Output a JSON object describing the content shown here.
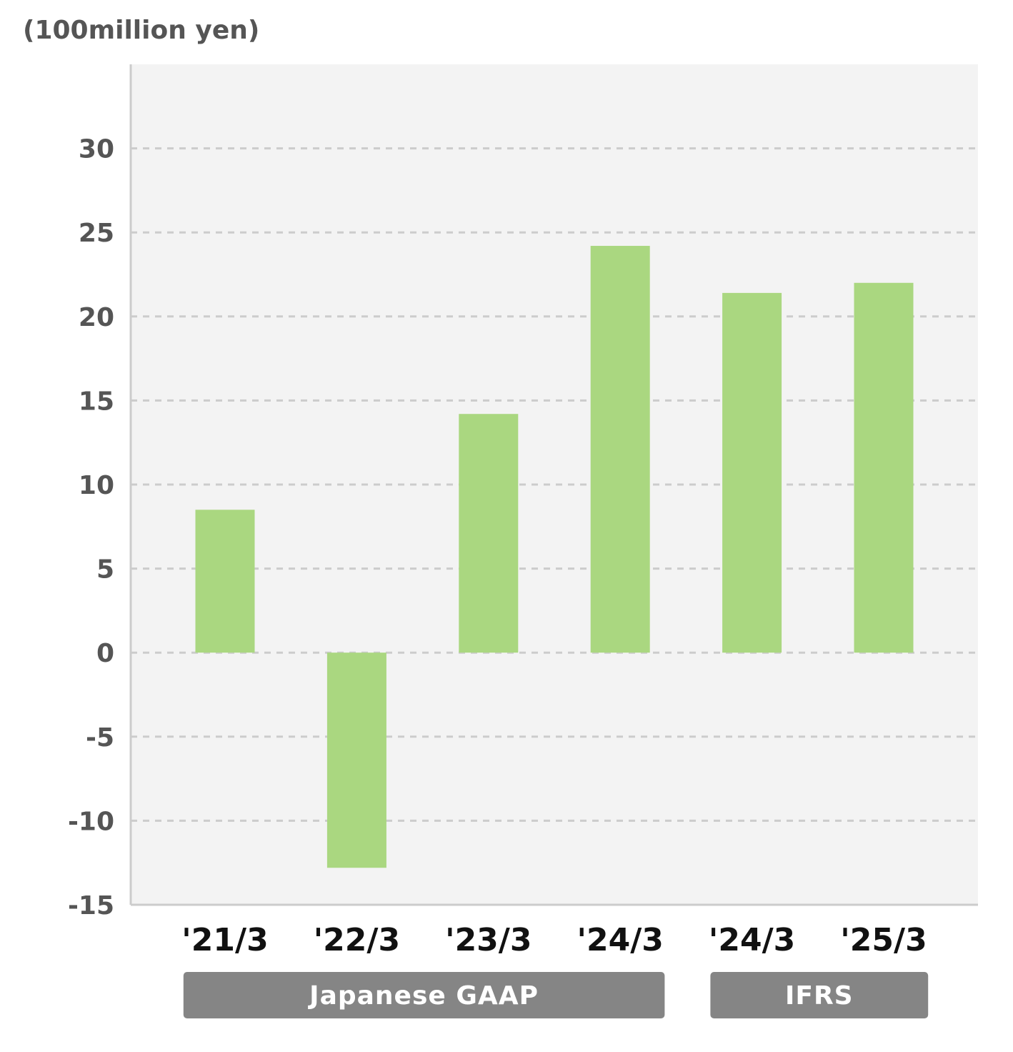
{
  "chart_data": {
    "type": "bar",
    "unit_label": "(100million yen)",
    "categories": [
      "'21/3",
      "'22/3",
      "'23/3",
      "'24/3",
      "'24/3",
      "'25/3"
    ],
    "values": [
      8.5,
      -12.8,
      14.2,
      24.2,
      21.4,
      22.0
    ],
    "ylim": [
      -15,
      35
    ],
    "yticks": [
      "30",
      "25",
      "20",
      "15",
      "10",
      "5",
      "0",
      "-5",
      "-10",
      "-15"
    ],
    "ytick_values": [
      30,
      25,
      20,
      15,
      10,
      5,
      0,
      -5,
      -10,
      -15
    ],
    "grid": true,
    "colors": {
      "bar": "#aad780",
      "plot_bg": "#f3f3f3",
      "axis": "#cccccc",
      "grid": "#cccccc",
      "group_bg": "#858585",
      "tick_text": "#555555",
      "category_text": "#111111"
    },
    "groups": [
      {
        "label": "Japanese GAAP",
        "categories": [
          "'21/3",
          "'22/3",
          "'23/3",
          "'24/3"
        ]
      },
      {
        "label": "IFRS",
        "categories": [
          "'24/3",
          "'25/3"
        ]
      }
    ]
  }
}
